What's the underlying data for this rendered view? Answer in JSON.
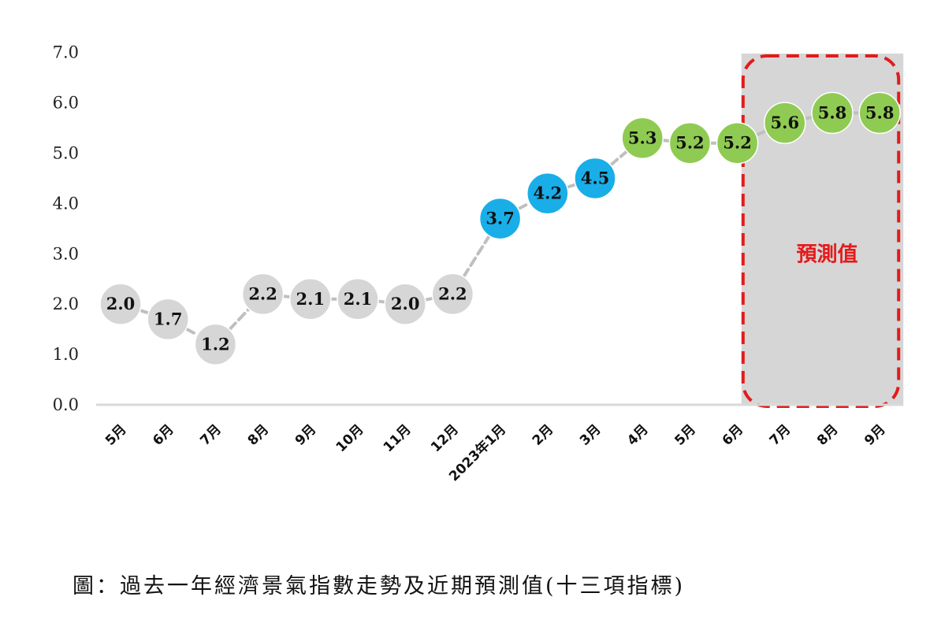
{
  "chart_data": {
    "type": "line",
    "categories": [
      "5月",
      "6月",
      "7月",
      "8月",
      "9月",
      "10月",
      "11月",
      "12月",
      "2023年1月",
      "2月",
      "3月",
      "4月",
      "5月",
      "6月",
      "7月",
      "8月",
      "9月"
    ],
    "values": [
      2.0,
      1.7,
      1.2,
      2.2,
      2.1,
      2.1,
      2.0,
      2.2,
      3.7,
      4.2,
      4.5,
      5.3,
      5.2,
      5.2,
      5.6,
      5.8,
      5.8
    ],
    "point_labels": [
      "2.0",
      "1.7",
      "1.2",
      "2.2",
      "2.1",
      "2.1",
      "2.0",
      "2.2",
      "3.7",
      "4.2",
      "4.5",
      "5.3",
      "5.2",
      "5.2",
      "5.6",
      "5.8",
      "5.8"
    ],
    "point_colors": [
      "#d6d6d6",
      "#d6d6d6",
      "#d6d6d6",
      "#d6d6d6",
      "#d6d6d6",
      "#d6d6d6",
      "#d6d6d6",
      "#d6d6d6",
      "#19aee8",
      "#19aee8",
      "#19aee8",
      "#8fcb52",
      "#8fcb52",
      "#8fcb52",
      "#8fcb52",
      "#8fcb52",
      "#8fcb52"
    ],
    "yticks": [
      "0.0",
      "1.0",
      "2.0",
      "3.0",
      "4.0",
      "5.0",
      "6.0",
      "7.0"
    ],
    "ylim": [
      0,
      7
    ],
    "grid": false,
    "forecast_start_index": 14,
    "forecast_label": "預測值",
    "title": ""
  },
  "caption": "圖：過去一年經濟景氣指數走勢及近期預測值(十三項指標)",
  "colors": {
    "gray_point": "#d6d6d6",
    "blue_point": "#19aee8",
    "green_point": "#8fcb52",
    "connector": "#bfbfbf",
    "forecast_bg": "#d6d6d6",
    "forecast_border": "#e31b1b",
    "axis": "#d9d9d9"
  }
}
